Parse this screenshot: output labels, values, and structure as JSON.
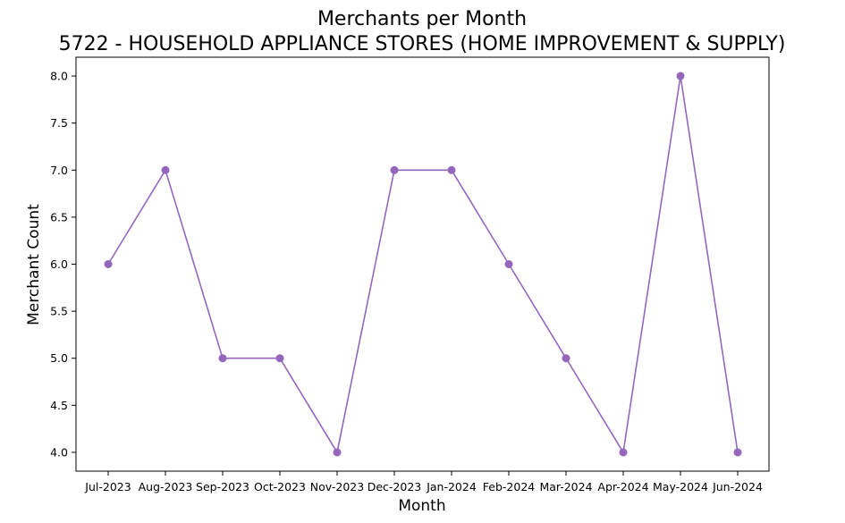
{
  "chart_data": {
    "type": "line",
    "title": "Merchants per Month",
    "subtitle": "5722 - HOUSEHOLD APPLIANCE STORES (HOME IMPROVEMENT & SUPPLY)",
    "xlabel": "Month",
    "ylabel": "Merchant Count",
    "categories": [
      "Jul-2023",
      "Aug-2023",
      "Sep-2023",
      "Oct-2023",
      "Nov-2023",
      "Dec-2023",
      "Jan-2024",
      "Feb-2024",
      "Mar-2024",
      "Apr-2024",
      "May-2024",
      "Jun-2024"
    ],
    "series": [
      {
        "values": [
          6,
          7,
          5,
          5,
          4,
          7,
          7,
          6,
          5,
          4,
          8,
          4
        ],
        "color": "#9467bd"
      }
    ],
    "ylim": [
      3.8,
      8.2
    ],
    "yticks": [
      "4.0",
      "4.5",
      "5.0",
      "5.5",
      "6.0",
      "6.5",
      "7.0",
      "7.5",
      "8.0"
    ],
    "grid": false,
    "marker": "circle"
  }
}
